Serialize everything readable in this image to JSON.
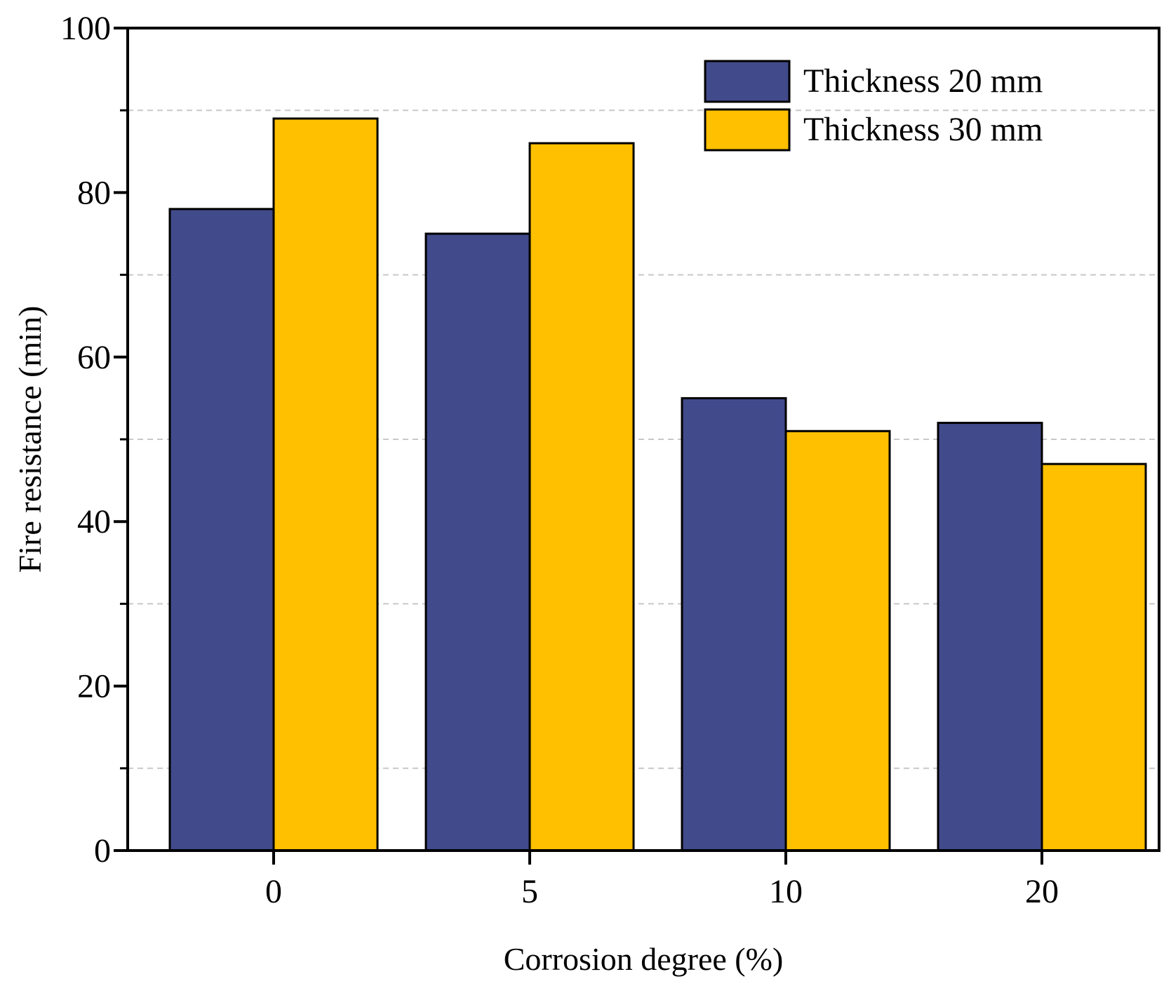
{
  "chart_data": {
    "type": "bar",
    "categories": [
      "0",
      "5",
      "10",
      "20"
    ],
    "series": [
      {
        "name": "Thickness 20 mm",
        "values": [
          78,
          75,
          55,
          52
        ],
        "color": "#414a8a"
      },
      {
        "name": "Thickness 30 mm",
        "values": [
          89,
          86,
          51,
          47
        ],
        "color": "#ffc000"
      }
    ],
    "xlabel": "Corrosion degree (%)",
    "ylabel": "Fire resistance (min)",
    "ylim": [
      0,
      100
    ],
    "yticks": [
      "0",
      "20",
      "40",
      "60",
      "80",
      "100"
    ],
    "minor_gridlines": [
      10,
      30,
      50,
      70,
      90
    ],
    "grid": "dashed minor horizontal",
    "legend_position": "top-right"
  }
}
